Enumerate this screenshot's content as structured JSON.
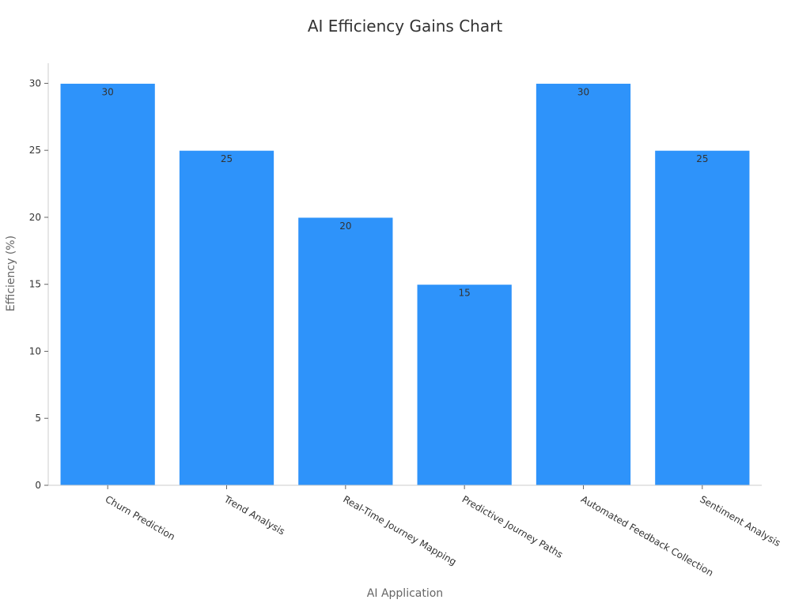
{
  "chart_data": {
    "type": "bar",
    "title": "AI Efficiency Gains Chart",
    "xlabel": "AI Application",
    "ylabel": "Efficiency (%)",
    "categories": [
      "Churn Prediction",
      "Trend Analysis",
      "Real-Time Journey Mapping",
      "Predictive Journey Paths",
      "Automated Feedback Collection",
      "Sentiment Analysis"
    ],
    "values": [
      30,
      25,
      20,
      15,
      30,
      25
    ],
    "data_labels": [
      "30",
      "25",
      "20",
      "15",
      "30",
      "25"
    ],
    "ylim": [
      0,
      31.5
    ],
    "yticks": [
      0,
      5,
      10,
      15,
      20,
      25,
      30
    ],
    "ytick_labels": [
      "0",
      "5",
      "10",
      "15",
      "20",
      "25",
      "30"
    ],
    "grid": false,
    "legend": "none",
    "bar_color": "#2e93fa",
    "bar_edge_color": "#ffffff",
    "axis_color": "#cccccc"
  }
}
